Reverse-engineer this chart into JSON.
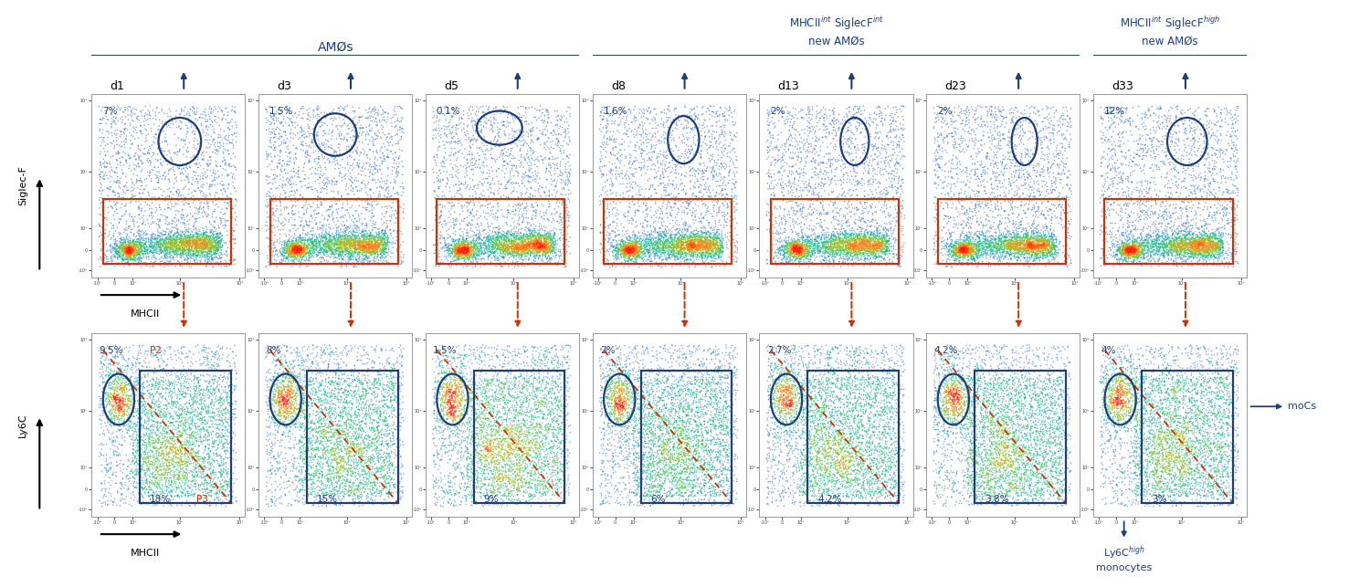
{
  "figure_width": 15.0,
  "figure_height": 6.43,
  "bg_color": "#ffffff",
  "days": [
    "d1",
    "d3",
    "d5",
    "d8",
    "d13",
    "d23",
    "d33"
  ],
  "top_percentages": [
    "7%",
    "1.5%",
    "0.1%",
    "1.6%",
    "2%",
    "2%",
    "12%"
  ],
  "bottom_top_percentages": [
    "9.5%",
    "8%",
    "1.5%",
    "2%",
    "2.7%",
    "4.2%",
    "4%"
  ],
  "bottom_bot_percentages": [
    "18%",
    "15%",
    "9%",
    "6%",
    "4.2%",
    "3.8%",
    "3%"
  ],
  "p2_label": "P2",
  "p3_label": "P3",
  "group1_label": "AMØs",
  "group2_label": "MHCII$^{int}$ SiglecF$^{int}$\nnew AMØs",
  "group3_label": "MHCII$^{int}$ SiglecF$^{high}$\nnew AMØs",
  "ylabel_top": "Siglec-F",
  "ylabel_bottom": "Ly6C",
  "xlabel": "MHCII",
  "dark_blue": "#1f3d7a",
  "orange_red": "#cc3300",
  "light_gray": "#e8e8e8"
}
